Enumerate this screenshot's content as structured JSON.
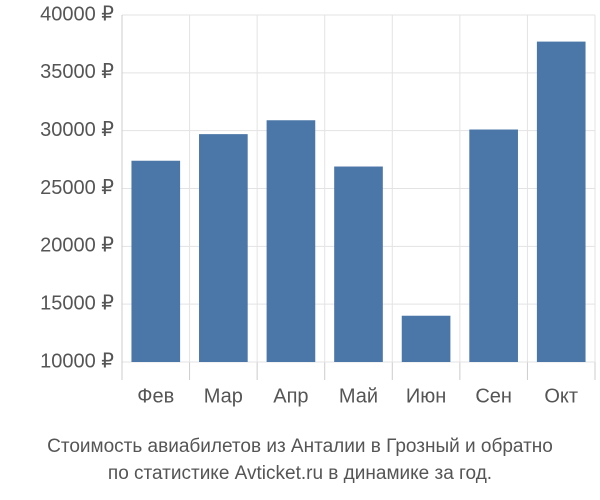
{
  "chart_data": {
    "type": "bar",
    "title": [
      "Стоимость авиабилетов из Анталии в Грозный и обратно",
      "по статистике Avticket.ru в динамике за год."
    ],
    "categories": [
      "Фев",
      "Мар",
      "Апр",
      "Май",
      "Июн",
      "Сен",
      "Окт"
    ],
    "values": [
      27400,
      29700,
      30900,
      26900,
      14000,
      30100,
      37700
    ],
    "color": "#4a76a8",
    "ylim": [
      10000,
      40000
    ],
    "yticks": [
      {
        "value": 10000,
        "label": "10000 ₽"
      },
      {
        "value": 15000,
        "label": "15000 ₽"
      },
      {
        "value": 20000,
        "label": "20000 ₽"
      },
      {
        "value": 25000,
        "label": "25000 ₽"
      },
      {
        "value": 30000,
        "label": "30000 ₽"
      },
      {
        "value": 35000,
        "label": "35000 ₽"
      },
      {
        "value": 40000,
        "label": "40000 ₽"
      }
    ],
    "grid": true
  }
}
